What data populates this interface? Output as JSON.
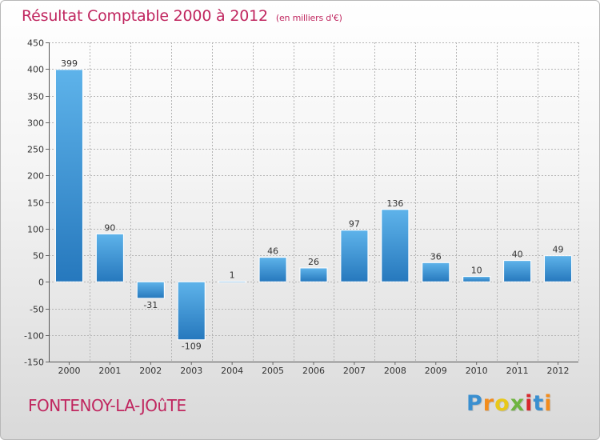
{
  "header": {
    "title": "Résultat Comptable 2000 à 2012",
    "subtitle": "(en milliers d'€)"
  },
  "footer": {
    "town": "FONTENOY-LA-JOûTE",
    "logo": [
      "P",
      "r",
      "o",
      "x",
      "i",
      "t",
      "i"
    ],
    "logo_colors": [
      "#3a8fd0",
      "#f28c1c",
      "#e8c81a",
      "#6fb43f",
      "#d8282d",
      "#3a8fd0",
      "#f28c1c"
    ]
  },
  "chart_data": {
    "type": "bar",
    "title": "Résultat Comptable 2000 à 2012",
    "ylabel": "en milliers d'€",
    "xlabel": "",
    "categories": [
      "2000",
      "2001",
      "2002",
      "2003",
      "2004",
      "2005",
      "2006",
      "2007",
      "2008",
      "2009",
      "2010",
      "2011",
      "2012"
    ],
    "values": [
      399,
      90,
      -31,
      -109,
      1,
      46,
      26,
      97,
      136,
      36,
      10,
      40,
      49
    ],
    "ylim": [
      -150,
      450
    ],
    "yticks": [
      -150,
      -100,
      -50,
      0,
      50,
      100,
      150,
      200,
      250,
      300,
      350,
      400,
      450
    ],
    "grid": true,
    "colors": {
      "bar_top": "#5eb3ea",
      "bar_bottom": "#2678bd",
      "grid": "#b5b5b5"
    }
  }
}
